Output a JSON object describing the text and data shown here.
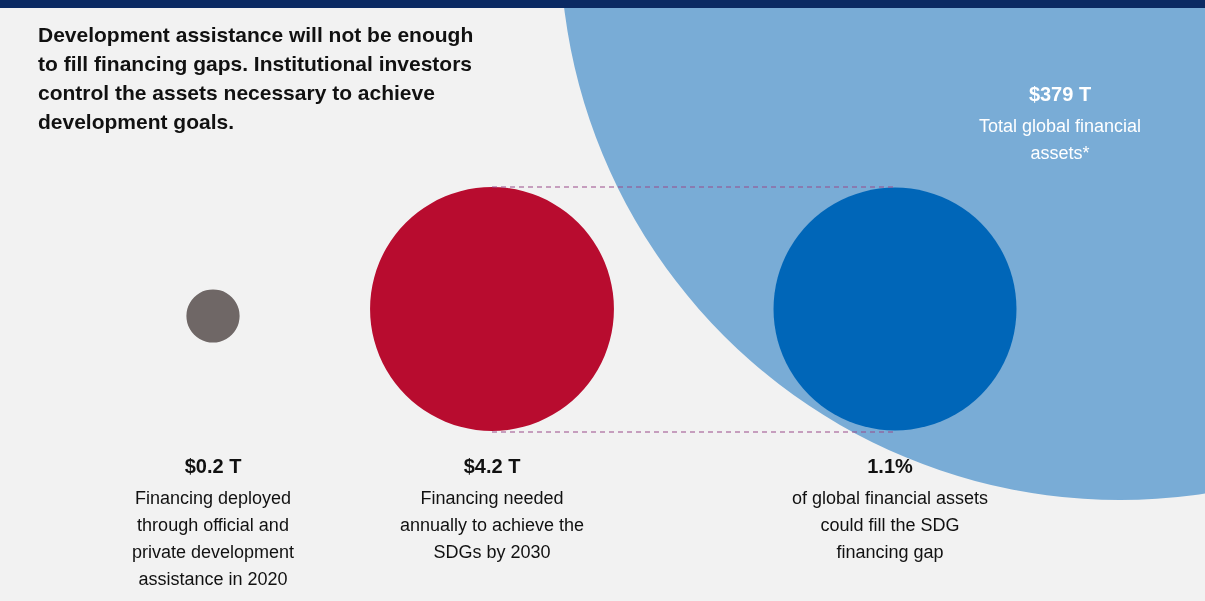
{
  "chart_data": {
    "type": "other",
    "title": "Development assistance will not be enough\nto fill financing gaps. Institutional investors\ncontrol the assets necessary to achieve\ndevelopment goals.",
    "categories": [
      "Financing deployed\nthrough official and\nprivate development\nassistance in 2020",
      "Financing needed\nannually to achieve the\nSDGs by 2030",
      "of global financial assets\ncould fill the SDG\nfinancing gap",
      "Total global financial\nassets*"
    ],
    "values": [
      0.2,
      4.2,
      1.1,
      379
    ],
    "value_labels": [
      "$0.2 T",
      "$4.2 T",
      "1.1%",
      "$379 T"
    ],
    "colors": [
      "#6f6766",
      "#b80c2f",
      "#0066b8",
      "#79acd6"
    ]
  }
}
